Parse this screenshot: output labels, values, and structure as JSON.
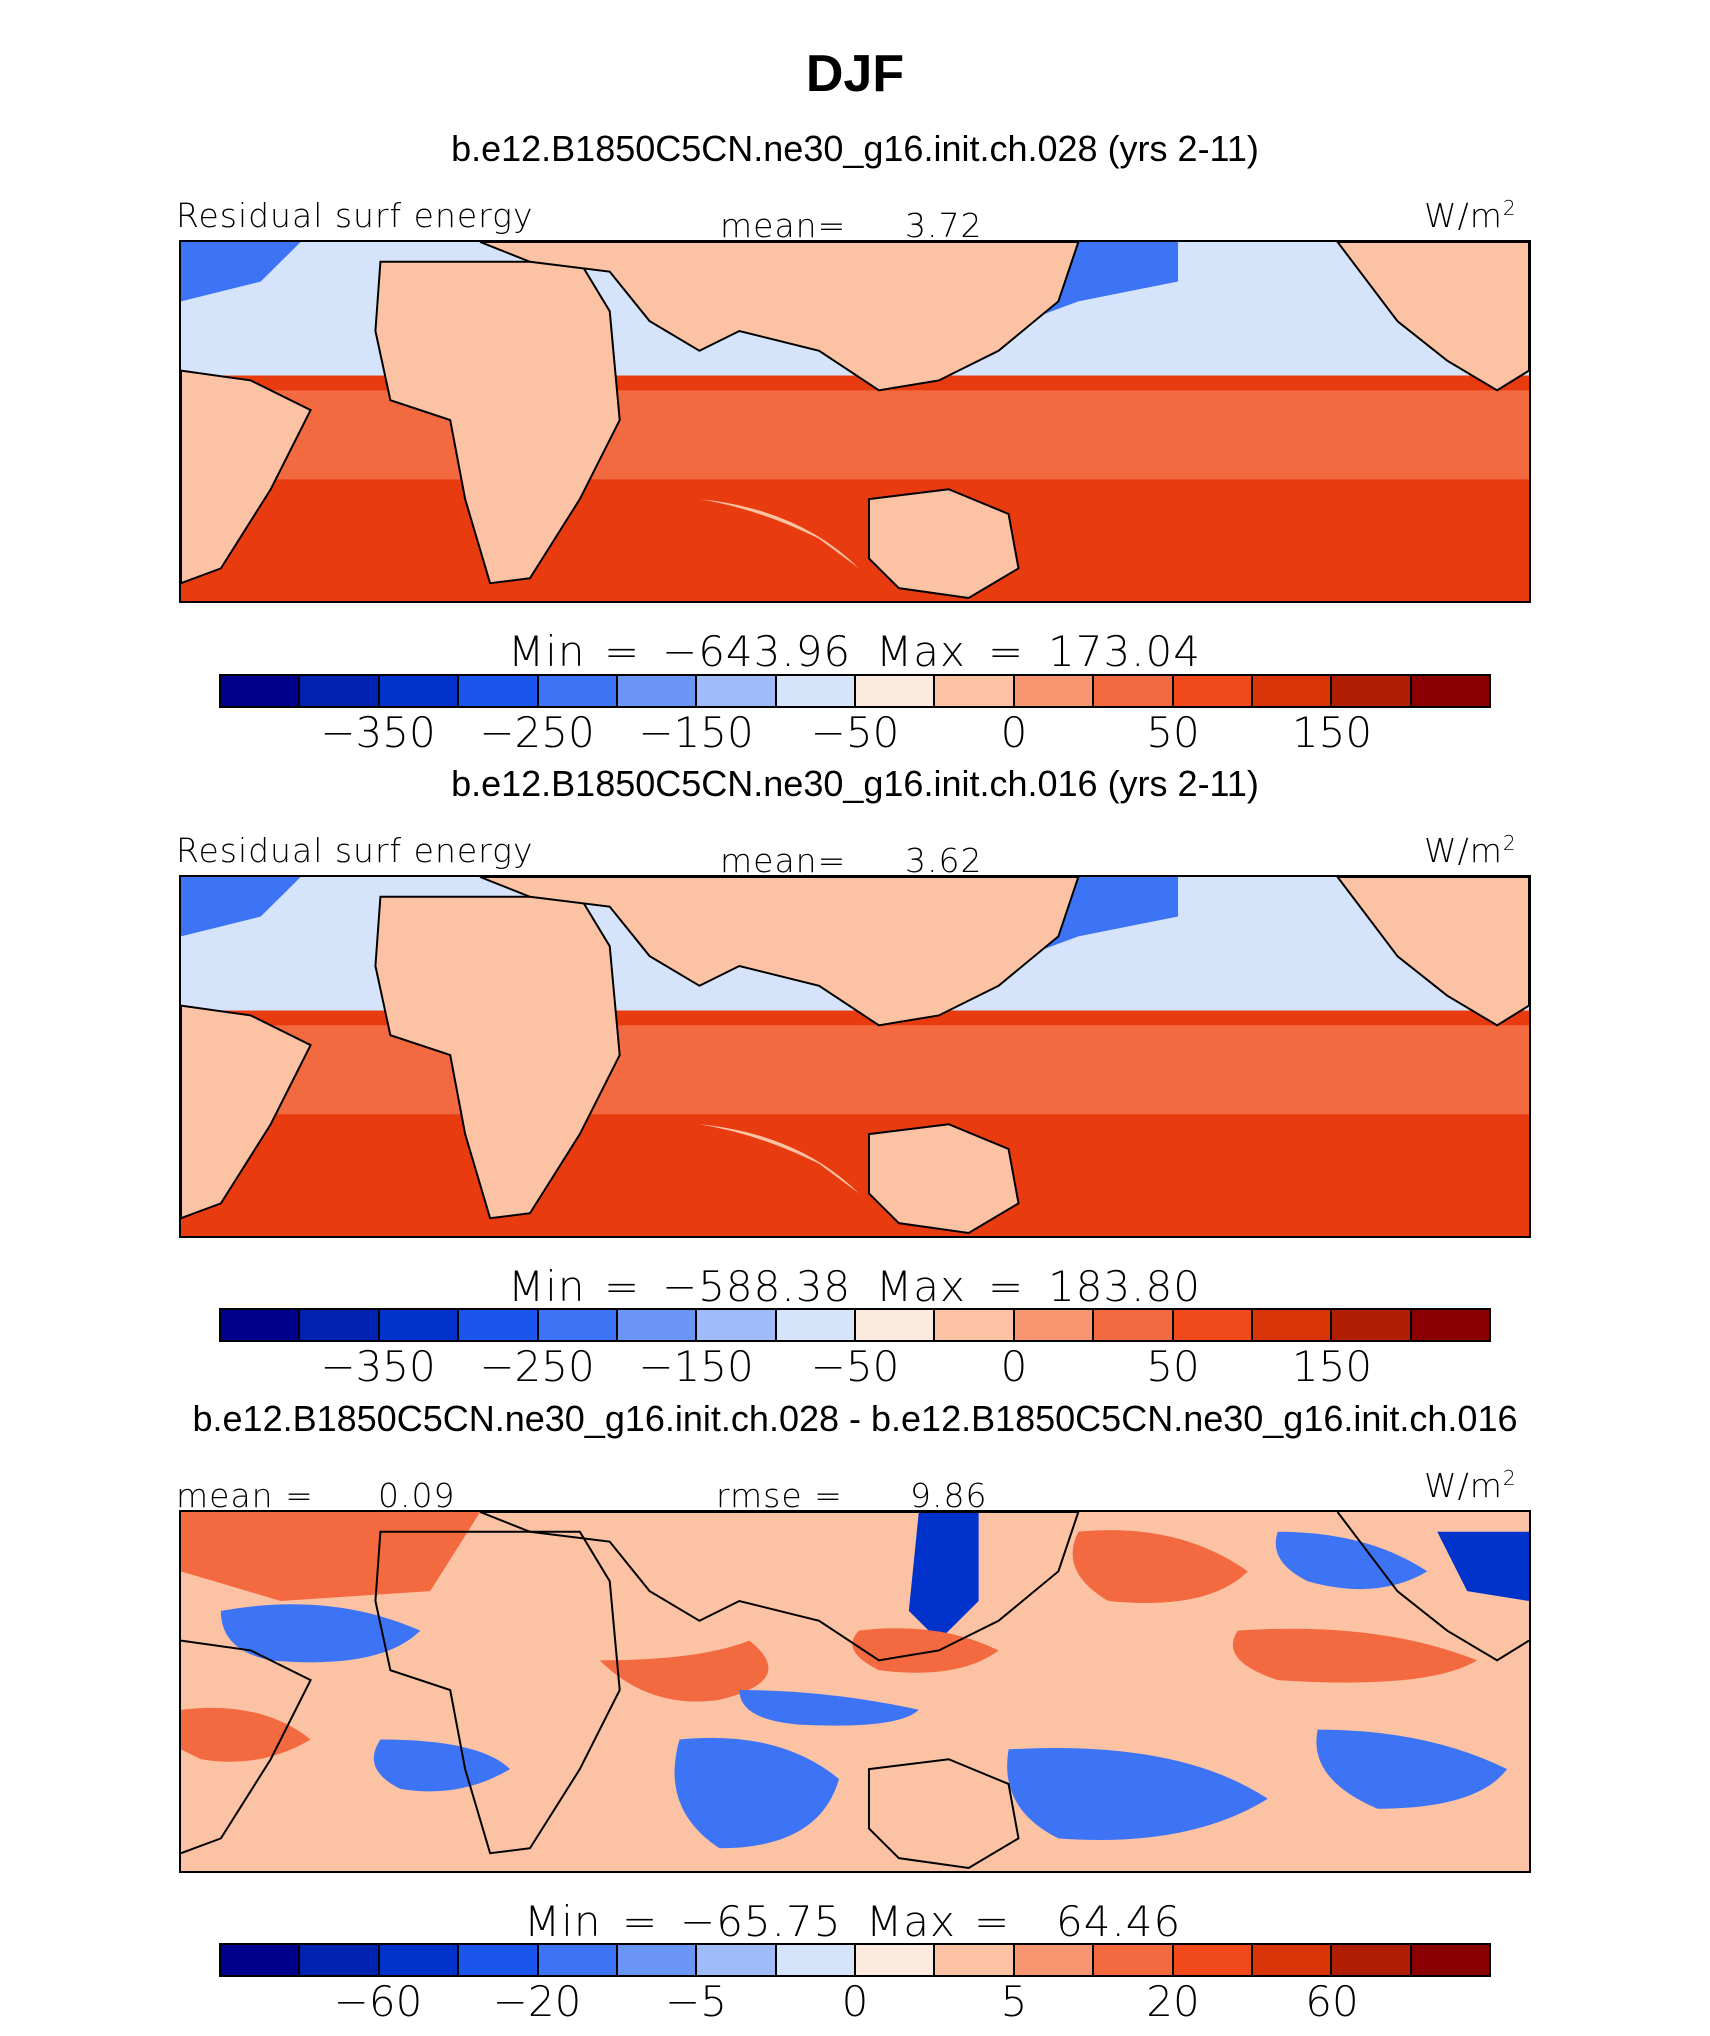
{
  "title": "DJF",
  "units_label": "W/m²",
  "colors": {
    "scale": [
      "#00008c",
      "#0022b0",
      "#0033cc",
      "#1a55ee",
      "#3d74f5",
      "#6b96f7",
      "#9fbcf9",
      "#d6e4fb",
      "#fdeadf",
      "#fbc2a4",
      "#f79670",
      "#f46a40",
      "#f04a1c",
      "#d93407",
      "#b01e04",
      "#8a0000"
    ],
    "ocean_warm": "#e83c10",
    "ocean_mid": "#f46a40",
    "land": "#fbc2a4",
    "ocean_cold": "#0033cc",
    "ocean_cool": "#d6e4fb"
  },
  "panel1": {
    "case": "b.e12.B1850C5CN.ne30_g16.init.ch.028 (yrs 2-11)",
    "variable": "Residual surf energy",
    "mean_label": "mean=",
    "mean_value": "3.72",
    "units": "W/m",
    "units_exp": "2",
    "min_label": "Min",
    "min_value": "−643.96",
    "max_label": "Max",
    "max_value": "173.04",
    "ticks": [
      "−350",
      "−250",
      "−150",
      "−50",
      "0",
      "50",
      "150"
    ]
  },
  "panel2": {
    "case": "b.e12.B1850C5CN.ne30_g16.init.ch.016 (yrs 2-11)",
    "variable": "Residual surf energy",
    "mean_label": "mean=",
    "mean_value": "3.62",
    "units": "W/m",
    "units_exp": "2",
    "min_label": "Min",
    "min_value": "−588.38",
    "max_label": "Max",
    "max_value": "183.80",
    "ticks": [
      "−350",
      "−250",
      "−150",
      "−50",
      "0",
      "50",
      "150"
    ]
  },
  "panel3": {
    "case": "b.e12.B1850C5CN.ne30_g16.init.ch.028 - b.e12.B1850C5CN.ne30_g16.init.ch.016",
    "mean_label": "mean =",
    "mean_value": "0.09",
    "rmse_label": "rmse =",
    "rmse_value": "9.86",
    "units": "W/m",
    "units_exp": "2",
    "min_label": "Min",
    "min_value": "−65.75",
    "max_label": "Max",
    "max_value": "64.46",
    "ticks": [
      "−60",
      "−20",
      "−5",
      "0",
      "5",
      "20",
      "60"
    ]
  }
}
